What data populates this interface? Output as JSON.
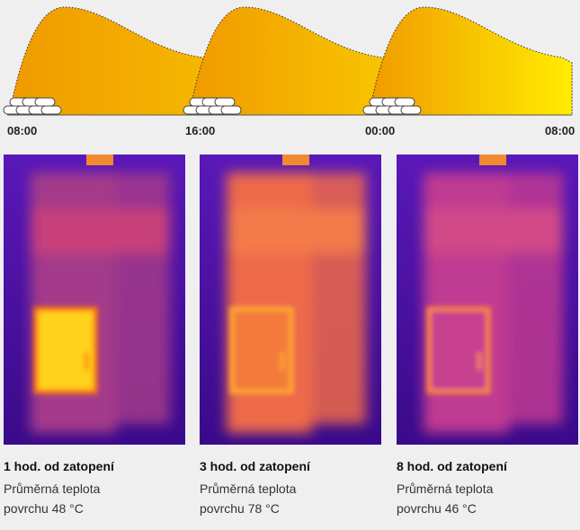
{
  "timeline": {
    "times": [
      "08:00",
      "16:00",
      "00:00",
      "08:00"
    ]
  },
  "panels": [
    {
      "title": "1 hod. od zatopení",
      "caption": [
        "Průměrná teplota",
        "povrchu 48 °C"
      ]
    },
    {
      "title": "3 hod. od zatopení",
      "caption": [
        "Průměrná teplota",
        "povrchu 78 °C"
      ]
    },
    {
      "title": "8 hod. od zatopení",
      "caption": [
        "Průměrná teplota",
        "povrchu 46 °C"
      ]
    }
  ]
}
